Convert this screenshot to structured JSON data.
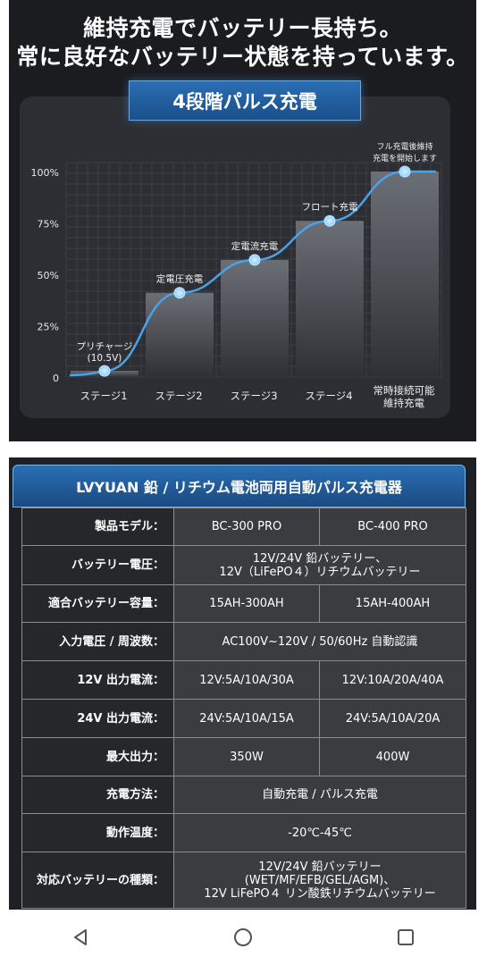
{
  "headline": {
    "line1": "維持充電でバッテリー長持ち。",
    "line2": "常に良好なバッテリー状態を持っています。"
  },
  "chart_title": "4段階パルス充電",
  "chart_data": {
    "type": "bar",
    "categories": [
      "ステージ1",
      "ステージ2",
      "ステージ3",
      "ステージ4",
      "常時接続可能\n維持充電"
    ],
    "values": [
      3,
      41,
      57,
      76,
      100
    ],
    "point_labels": [
      "プリチャージ\n(10.5V)",
      "定電圧充電",
      "定電流充電",
      "フロート充電",
      "フル充電後維持\n充電を開始します"
    ],
    "yticks": [
      "0",
      "25%",
      "50%",
      "75%",
      "100%"
    ],
    "ylim": [
      0,
      100
    ],
    "grid": true,
    "accent": "#4aa3e8"
  },
  "table": {
    "title": "LVYUAN 鉛 / リチウム電池両用自動パルス充電器",
    "rows": [
      {
        "label": "製品モデル：",
        "a": "BC-300 PRO",
        "b": "BC-400 PRO"
      },
      {
        "label": "バッテリー電圧：",
        "span": "12V/24V 鉛バッテリー、\n12V（LiFePO４）リチウムバッテリー"
      },
      {
        "label": "適合バッテリー容量：",
        "a": "15AH-300AH",
        "b": "15AH-400AH"
      },
      {
        "label": "入力電圧 / 周波数：",
        "span": "AC100V~120V / 50/60Hz 自動認識"
      },
      {
        "label": "12V 出力電流：",
        "a": "12V:5A/10A/30A",
        "b": "12V:10A/20A/40A"
      },
      {
        "label": "24V 出力電流：",
        "a": "24V:5A/10A/15A",
        "b": "24V:5A/10A/20A"
      },
      {
        "label": "最大出力：",
        "a": "350W",
        "b": "400W"
      },
      {
        "label": "充電方法：",
        "span": "自動充電 / パルス充電"
      },
      {
        "label": "動作温度：",
        "span": "-20℃-45℃"
      },
      {
        "label": "対応バッテリーの種類：",
        "span": "12V/24V 鉛バッテリー\n(WET/MF/EFB/GEL/AGM)、\n12V LiFePO４ リン酸鉄リチウムバッテリー"
      }
    ]
  },
  "navbar": {
    "back_icon": "back-triangle-icon",
    "home_icon": "home-circle-icon",
    "recents_icon": "recents-square-icon"
  }
}
